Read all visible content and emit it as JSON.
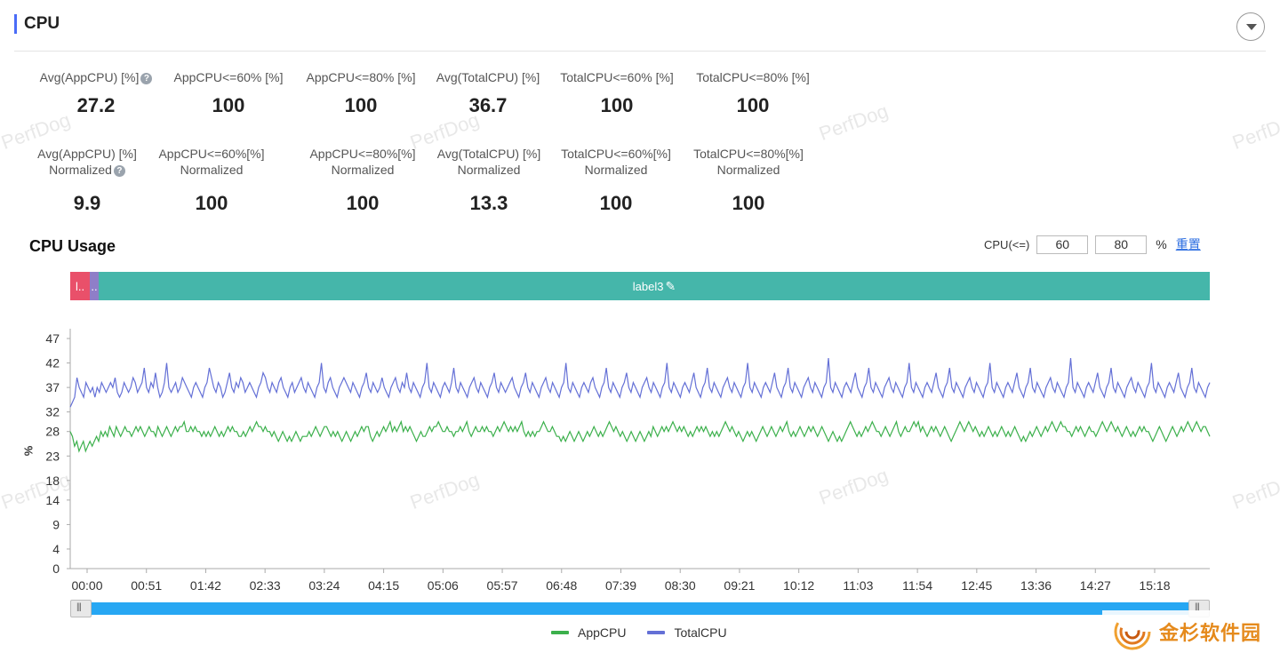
{
  "section": {
    "title": "CPU"
  },
  "watermark_text": "PerfDog",
  "metrics_row1": [
    {
      "label": "Avg(AppCPU) [%]",
      "value": "27.2",
      "help": true
    },
    {
      "label": "AppCPU<=60% [%]",
      "value": "100"
    },
    {
      "label": "AppCPU<=80% [%]",
      "value": "100"
    },
    {
      "label": "Avg(TotalCPU) [%]",
      "value": "36.7"
    },
    {
      "label": "TotalCPU<=60% [%]",
      "value": "100"
    },
    {
      "label": "TotalCPU<=80% [%]",
      "value": "100"
    }
  ],
  "metrics_row2": [
    {
      "label": "Avg(AppCPU) [%]",
      "label2": "Normalized",
      "value": "9.9",
      "help": true
    },
    {
      "label": "AppCPU<=60%[%]",
      "label2": "Normalized",
      "value": "100"
    },
    {
      "label": "AppCPU<=80%[%]",
      "label2": "Normalized",
      "value": "100"
    },
    {
      "label": "Avg(TotalCPU) [%]",
      "label2": "Normalized",
      "value": "13.3"
    },
    {
      "label": "TotalCPU<=60%[%]",
      "label2": "Normalized",
      "value": "100"
    },
    {
      "label": "TotalCPU<=80%[%]",
      "label2": "Normalized",
      "value": "100"
    }
  ],
  "chart_header": {
    "title": "CPU Usage",
    "threshold_label": "CPU(<=)",
    "threshold1": "60",
    "threshold2": "80",
    "unit": "%",
    "reset": "重置"
  },
  "label_bar": [
    {
      "text": "l..",
      "color": "#e9506a"
    },
    {
      "text": "..",
      "color": "#8f7ec8"
    },
    {
      "text": "label3",
      "color": "#45b6aa"
    }
  ],
  "colors": {
    "accent": "#4a6cf7",
    "app": "#3cb04c",
    "total": "#6470d6"
  },
  "chart_data": {
    "type": "line",
    "title": "",
    "xlabel": "",
    "ylabel": "%",
    "x_ticks": [
      "00:00",
      "00:51",
      "01:42",
      "02:33",
      "03:24",
      "04:15",
      "05:06",
      "05:57",
      "06:48",
      "07:39",
      "08:30",
      "09:21",
      "10:12",
      "11:03",
      "11:54",
      "12:45",
      "13:36",
      "14:27",
      "15:18"
    ],
    "y_ticks": [
      0,
      4,
      9,
      14,
      18,
      23,
      28,
      32,
      37,
      42,
      47
    ],
    "ylim": [
      0,
      49
    ],
    "x_range_seconds": [
      0,
      959
    ],
    "legend_position": "bottom",
    "series": [
      {
        "name": "AppCPU",
        "color": "#3cb04c",
        "values": [
          28,
          27,
          25,
          26,
          24,
          25,
          26,
          24,
          25,
          26,
          25,
          26,
          27,
          26,
          28,
          27,
          28,
          27,
          29,
          28,
          27,
          29,
          28,
          27,
          28,
          29,
          28,
          28,
          27,
          28,
          29,
          28,
          29,
          28,
          27,
          28,
          29,
          28,
          28,
          27,
          29,
          28,
          27,
          28,
          29,
          28,
          27,
          28,
          29,
          28,
          29,
          29,
          30,
          28,
          28,
          29,
          28,
          29,
          28,
          28,
          27,
          28,
          27,
          28,
          27,
          28,
          29,
          28,
          27,
          28,
          27,
          28,
          29,
          28,
          29,
          28,
          28,
          27,
          27,
          28,
          27,
          28,
          29,
          28,
          29,
          30,
          29,
          29,
          28,
          29,
          28,
          28,
          27,
          28,
          27,
          26,
          27,
          28,
          27,
          26,
          27,
          26,
          27,
          28,
          27,
          26,
          27,
          27,
          27,
          28,
          27,
          28,
          29,
          28,
          27,
          28,
          29,
          29,
          28,
          27,
          28,
          27,
          28,
          27,
          26,
          27,
          28,
          27,
          26,
          27,
          28,
          27,
          28,
          29,
          28,
          29,
          29,
          27,
          26,
          27,
          28,
          27,
          28,
          29,
          28,
          29,
          30,
          28,
          29,
          28,
          29,
          30,
          28,
          29,
          28,
          29,
          28,
          27,
          26,
          27,
          28,
          27,
          27,
          28,
          29,
          28,
          29,
          29,
          30,
          29,
          28,
          28,
          29,
          28,
          28,
          27,
          28,
          28,
          29,
          28,
          29,
          30,
          28,
          27,
          28,
          29,
          28,
          28,
          29,
          28,
          29,
          28,
          28,
          27,
          28,
          29,
          28,
          29,
          30,
          29,
          28,
          29,
          28,
          29,
          28,
          29,
          30,
          28,
          27,
          28,
          27,
          28,
          27,
          28,
          28,
          29,
          30,
          29,
          28,
          28,
          29,
          28,
          27,
          27,
          26,
          27,
          26,
          27,
          28,
          27,
          26,
          27,
          28,
          27,
          26,
          27,
          28,
          27,
          28,
          29,
          28,
          27,
          28,
          27,
          28,
          29,
          30,
          29,
          28,
          29,
          28,
          27,
          28,
          27,
          26,
          27,
          28,
          27,
          26,
          27,
          28,
          27,
          26,
          27,
          28,
          27,
          29,
          28,
          27,
          28,
          29,
          28,
          29,
          28,
          29,
          30,
          29,
          28,
          29,
          28,
          29,
          28,
          27,
          28,
          27,
          28,
          29,
          28,
          29,
          28,
          29,
          28,
          27,
          28,
          27,
          28,
          27,
          28,
          29,
          30,
          29,
          28,
          29,
          28,
          27,
          28,
          27,
          26,
          27,
          28,
          27,
          28,
          27,
          26,
          27,
          28,
          29,
          28,
          27,
          28,
          29,
          28,
          27,
          28,
          29,
          28,
          29,
          30,
          28,
          27,
          28,
          27,
          28,
          29,
          28,
          27,
          28,
          29,
          28,
          29,
          28,
          27,
          28,
          29,
          28,
          27,
          26,
          27,
          28,
          27,
          26,
          27,
          26,
          27,
          28,
          29,
          30,
          29,
          28,
          27,
          28,
          27,
          28,
          29,
          28,
          29,
          30,
          29,
          28,
          28,
          27,
          28,
          29,
          28,
          27,
          28,
          29,
          30,
          28,
          27,
          28,
          29,
          28,
          28,
          29,
          30,
          29,
          30,
          28,
          29,
          28,
          27,
          28,
          29,
          28,
          29,
          28,
          27,
          28,
          29,
          28,
          27,
          26,
          27,
          28,
          29,
          30,
          29,
          28,
          29,
          30,
          29,
          28,
          29,
          28,
          27,
          28,
          27,
          28,
          29,
          28,
          27,
          28,
          27,
          28,
          29,
          28,
          27,
          28,
          27,
          28,
          29,
          28,
          27,
          26,
          27,
          26,
          27,
          28,
          27,
          28,
          29,
          28,
          27,
          28,
          29,
          28,
          29,
          30,
          29,
          28,
          29,
          30,
          29,
          29,
          28,
          28,
          27,
          28,
          29,
          28,
          29,
          28,
          27,
          28,
          29,
          28,
          28,
          27,
          28,
          29,
          30,
          29,
          28,
          29,
          30,
          29,
          28,
          29,
          28,
          27,
          28,
          29,
          28,
          27,
          28,
          27,
          28,
          29,
          28,
          29,
          28,
          28,
          27,
          26,
          27,
          28,
          29,
          28,
          27,
          26,
          27,
          28,
          29,
          28,
          27,
          28,
          29,
          28,
          29,
          30,
          29,
          28,
          29,
          30,
          29,
          28,
          29,
          29,
          28,
          27
        ]
      },
      {
        "name": "TotalCPU",
        "color": "#6470d6",
        "values": [
          33,
          34,
          35,
          39,
          37,
          36,
          35,
          38,
          37,
          36,
          37,
          35,
          37,
          36,
          38,
          37,
          36,
          37,
          38,
          37,
          39,
          36,
          35,
          36,
          38,
          37,
          36,
          37,
          39,
          38,
          36,
          37,
          38,
          41,
          37,
          36,
          38,
          37,
          40,
          37,
          35,
          36,
          38,
          42,
          37,
          36,
          37,
          38,
          36,
          37,
          39,
          38,
          37,
          36,
          35,
          37,
          38,
          37,
          36,
          35,
          37,
          38,
          41,
          39,
          37,
          36,
          38,
          37,
          35,
          36,
          38,
          40,
          37,
          36,
          38,
          37,
          39,
          38,
          36,
          37,
          38,
          37,
          36,
          35,
          37,
          38,
          40,
          39,
          37,
          36,
          38,
          37,
          36,
          38,
          39,
          37,
          36,
          35,
          37,
          38,
          36,
          37,
          38,
          39,
          37,
          36,
          38,
          37,
          36,
          35,
          37,
          38,
          42,
          37,
          36,
          38,
          39,
          37,
          36,
          35,
          37,
          38,
          39,
          38,
          37,
          36,
          38,
          37,
          36,
          35,
          37,
          38,
          40,
          37,
          36,
          38,
          37,
          36,
          37,
          39,
          37,
          36,
          35,
          37,
          38,
          39,
          37,
          36,
          38,
          37,
          40,
          37,
          36,
          38,
          37,
          36,
          35,
          37,
          38,
          42,
          37,
          36,
          38,
          37,
          36,
          35,
          37,
          38,
          37,
          36,
          38,
          41,
          37,
          36,
          38,
          37,
          36,
          35,
          37,
          38,
          39,
          37,
          36,
          38,
          37,
          36,
          35,
          37,
          38,
          40,
          37,
          36,
          38,
          37,
          36,
          37,
          38,
          39,
          37,
          36,
          35,
          37,
          38,
          40,
          37,
          36,
          38,
          37,
          36,
          35,
          37,
          38,
          39,
          37,
          36,
          38,
          37,
          36,
          35,
          37,
          38,
          42,
          37,
          36,
          38,
          37,
          36,
          35,
          37,
          38,
          37,
          36,
          38,
          39,
          37,
          36,
          35,
          37,
          38,
          41,
          37,
          36,
          38,
          37,
          36,
          35,
          37,
          38,
          40,
          37,
          36,
          38,
          37,
          36,
          35,
          37,
          38,
          39,
          37,
          36,
          38,
          37,
          36,
          35,
          37,
          38,
          42,
          37,
          36,
          38,
          37,
          36,
          35,
          37,
          38,
          37,
          36,
          38,
          40,
          37,
          36,
          35,
          37,
          38,
          41,
          37,
          36,
          38,
          37,
          36,
          35,
          37,
          38,
          39,
          37,
          36,
          38,
          37,
          36,
          35,
          37,
          38,
          42,
          37,
          36,
          38,
          37,
          36,
          35,
          37,
          38,
          37,
          36,
          38,
          40,
          37,
          36,
          35,
          37,
          38,
          41,
          37,
          36,
          38,
          37,
          36,
          35,
          37,
          38,
          39,
          37,
          36,
          38,
          37,
          36,
          35,
          37,
          38,
          43,
          37,
          36,
          38,
          37,
          36,
          35,
          37,
          38,
          37,
          36,
          38,
          40,
          37,
          36,
          35,
          37,
          38,
          41,
          37,
          36,
          38,
          37,
          36,
          35,
          37,
          38,
          39,
          37,
          36,
          38,
          37,
          36,
          35,
          37,
          38,
          42,
          37,
          36,
          38,
          37,
          36,
          35,
          37,
          38,
          37,
          36,
          38,
          40,
          37,
          36,
          35,
          37,
          38,
          41,
          37,
          36,
          38,
          37,
          36,
          35,
          37,
          38,
          39,
          37,
          36,
          38,
          37,
          36,
          35,
          37,
          38,
          42,
          37,
          36,
          38,
          37,
          36,
          35,
          37,
          38,
          37,
          36,
          38,
          40,
          37,
          36,
          35,
          37,
          38,
          41,
          37,
          36,
          38,
          37,
          36,
          35,
          37,
          38,
          39,
          37,
          36,
          38,
          37,
          36,
          35,
          37,
          38,
          43,
          37,
          36,
          38,
          37,
          36,
          35,
          37,
          38,
          37,
          36,
          38,
          40,
          37,
          36,
          35,
          37,
          38,
          41,
          37,
          36,
          38,
          37,
          36,
          35,
          37,
          38,
          39,
          37,
          36,
          38,
          37,
          36,
          35,
          37,
          38,
          42,
          37,
          36,
          38,
          37,
          36,
          35,
          37,
          38,
          37,
          36,
          38,
          40,
          37,
          36,
          35,
          37,
          38,
          41,
          37,
          36,
          38,
          37,
          36,
          35,
          37,
          38
        ]
      }
    ]
  },
  "legend": [
    {
      "name": "AppCPU",
      "color": "#3cb04c"
    },
    {
      "name": "TotalCPU",
      "color": "#6470d6"
    }
  ],
  "logo_text": "金杉软件园"
}
